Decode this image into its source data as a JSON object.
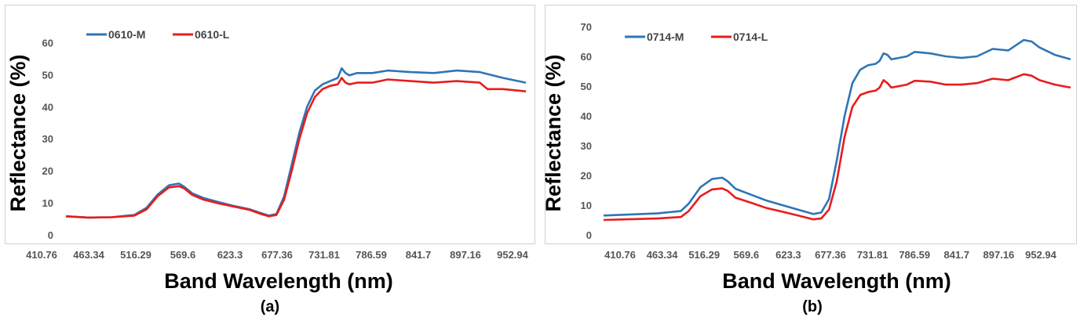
{
  "chart_data": [
    {
      "type": "line",
      "panel_label": "(a)",
      "title": "",
      "xlabel": "Band Wavelength (nm)",
      "ylabel": "Reflectance (%)",
      "ylim": [
        0,
        65
      ],
      "yticks": [
        0,
        10,
        20,
        30,
        40,
        50,
        60
      ],
      "xlim": [
        410.76,
        1010
      ],
      "xtick_labels": [
        "410.76",
        "463.34",
        "516.29",
        "569.6",
        "623.3",
        "677.36",
        "731.81",
        "786.59",
        "841.7",
        "897.16",
        "952.94"
      ],
      "grid": false,
      "legend_position": "top-left",
      "series": [
        {
          "name": "0610-M",
          "color": "#2f75b5",
          "x": [
            410.76,
            440,
            470,
            500,
            516,
            530,
            545,
            558,
            565,
            575,
            590,
            610,
            630,
            650,
            665,
            675,
            685,
            695,
            705,
            715,
            725,
            735,
            745,
            755,
            765,
            770,
            775,
            780,
            790,
            810,
            830,
            860,
            890,
            920,
            950,
            980,
            1010
          ],
          "y": [
            5.8,
            5.4,
            5.5,
            6.2,
            8.5,
            12.5,
            15.5,
            16.0,
            15.0,
            13.0,
            11.5,
            10.2,
            9.0,
            8.0,
            6.8,
            6.0,
            6.5,
            12.0,
            22.0,
            32.0,
            40.0,
            45.0,
            47.0,
            48.0,
            49.0,
            52.0,
            50.5,
            49.8,
            50.5,
            50.5,
            51.3,
            50.8,
            50.5,
            51.3,
            50.8,
            49.0,
            47.5
          ]
        },
        {
          "name": "0610-L",
          "color": "#e81c1c",
          "x": [
            410.76,
            440,
            470,
            500,
            516,
            530,
            545,
            558,
            565,
            575,
            590,
            610,
            630,
            650,
            665,
            675,
            685,
            695,
            705,
            715,
            725,
            735,
            745,
            755,
            765,
            770,
            775,
            780,
            790,
            810,
            830,
            860,
            890,
            920,
            950,
            960,
            980,
            1010
          ],
          "y": [
            5.8,
            5.4,
            5.5,
            6.0,
            8.0,
            12.0,
            14.8,
            15.2,
            14.5,
            12.5,
            11.0,
            9.8,
            8.8,
            7.8,
            6.5,
            5.8,
            6.2,
            11.0,
            20.0,
            30.0,
            38.0,
            43.0,
            45.5,
            46.5,
            47.0,
            49.0,
            47.5,
            47.0,
            47.5,
            47.5,
            48.5,
            48.0,
            47.5,
            48.0,
            47.5,
            45.5,
            45.5,
            44.8
          ]
        }
      ]
    },
    {
      "type": "line",
      "panel_label": "(b)",
      "title": "",
      "xlabel": "Band Wavelength (nm)",
      "ylabel": "Reflectance (%)",
      "ylim": [
        0,
        70
      ],
      "yticks": [
        0,
        10,
        20,
        30,
        40,
        50,
        60,
        70
      ],
      "xlim": [
        410.76,
        1010
      ],
      "xtick_labels": [
        "410.76",
        "463.34",
        "516.29",
        "569.6",
        "623.3",
        "677.36",
        "731.81",
        "786.59",
        "841.7",
        "897.16",
        "952.94"
      ],
      "grid": false,
      "legend_position": "top-left",
      "series": [
        {
          "name": "0714-M",
          "color": "#2f75b5",
          "x": [
            410.76,
            440,
            480,
            510,
            520,
            535,
            550,
            563,
            570,
            580,
            600,
            620,
            640,
            660,
            680,
            690,
            700,
            710,
            720,
            730,
            740,
            750,
            760,
            765,
            770,
            775,
            780,
            790,
            800,
            810,
            830,
            850,
            870,
            890,
            910,
            930,
            950,
            960,
            970,
            990,
            1010
          ],
          "y": [
            6.5,
            6.8,
            7.2,
            8.0,
            10.5,
            16.0,
            18.8,
            19.2,
            18.0,
            15.5,
            13.5,
            11.5,
            10.0,
            8.5,
            7.0,
            7.5,
            12.0,
            25.0,
            40.0,
            51.0,
            55.5,
            57.0,
            57.5,
            58.5,
            61.0,
            60.5,
            59.0,
            59.5,
            60.0,
            61.5,
            61.0,
            60.0,
            59.5,
            60.0,
            62.5,
            62.0,
            65.5,
            65.0,
            63.0,
            60.5,
            59.0
          ]
        },
        {
          "name": "0714-L",
          "color": "#e81c1c",
          "x": [
            410.76,
            440,
            480,
            510,
            520,
            535,
            550,
            563,
            570,
            580,
            600,
            620,
            640,
            660,
            680,
            690,
            700,
            710,
            720,
            730,
            740,
            750,
            760,
            765,
            770,
            775,
            780,
            790,
            800,
            810,
            830,
            850,
            870,
            890,
            910,
            930,
            950,
            960,
            970,
            990,
            1010
          ],
          "y": [
            5.0,
            5.2,
            5.5,
            6.0,
            8.0,
            13.0,
            15.3,
            15.6,
            14.8,
            12.5,
            10.8,
            9.0,
            7.8,
            6.5,
            5.2,
            5.5,
            8.5,
            18.0,
            33.0,
            43.0,
            47.0,
            48.0,
            48.5,
            49.5,
            52.0,
            51.0,
            49.5,
            50.0,
            50.5,
            51.8,
            51.5,
            50.5,
            50.5,
            51.0,
            52.5,
            52.0,
            54.0,
            53.5,
            52.0,
            50.5,
            49.5
          ]
        }
      ]
    }
  ]
}
